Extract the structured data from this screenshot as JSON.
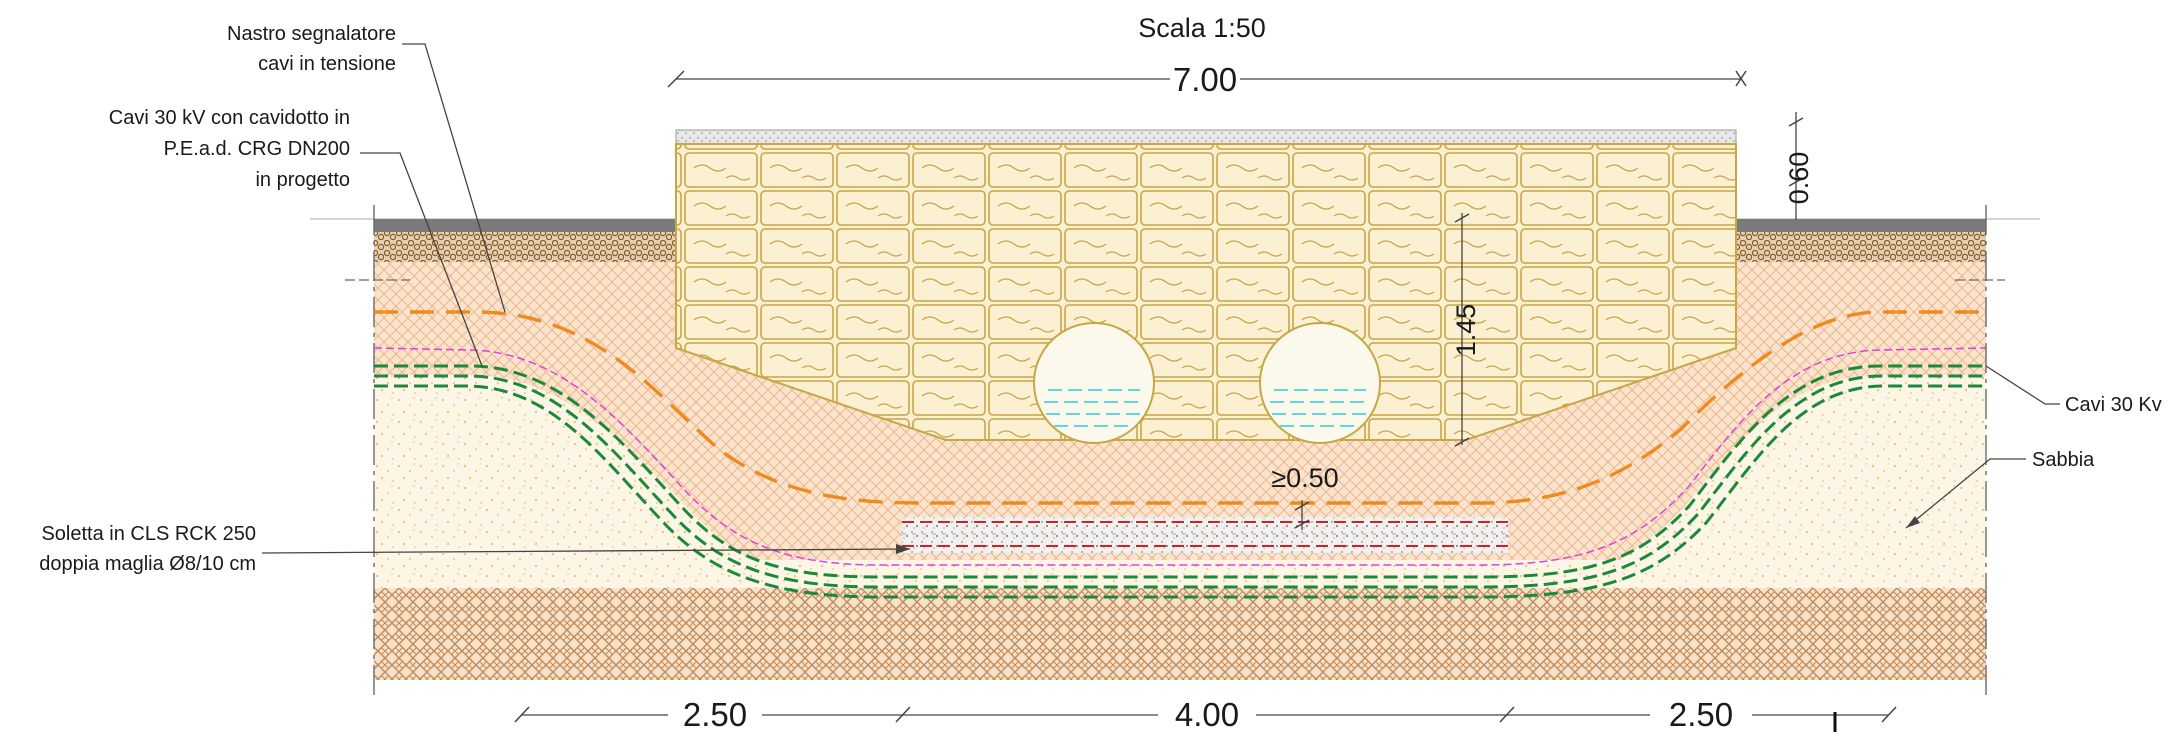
{
  "title": "Scala 1:50",
  "dimensions": {
    "top_width": "7.00",
    "cover_height": "0.60",
    "depth": "1.45",
    "min_gap": "≥0.50",
    "bottom_left": "2.50",
    "bottom_center": "4.00",
    "bottom_right": "2.50"
  },
  "labels": {
    "nastro": [
      "Nastro segnalatore",
      "cavi in tensione"
    ],
    "cavidotto": [
      "Cavi 30 kV con cavidotto in",
      "P.E.a.d. CRG DN200",
      "in progetto"
    ],
    "soletta": [
      "Soletta in CLS RCK 250",
      "doppia maglia Ø8/10 cm"
    ],
    "cavi_right": "Cavi 30 Kv",
    "sabbia": "Sabbia"
  },
  "colors": {
    "warning_tape": "#f08a1e",
    "cable_green": "#1a8a3a",
    "boundary_magenta": "#e040e0",
    "rebar_red": "#d42020",
    "stone": "#c8a646",
    "road": "#7a7a7a",
    "fill_peach": "#fbe3cc",
    "sand": "#fdf6e6"
  }
}
